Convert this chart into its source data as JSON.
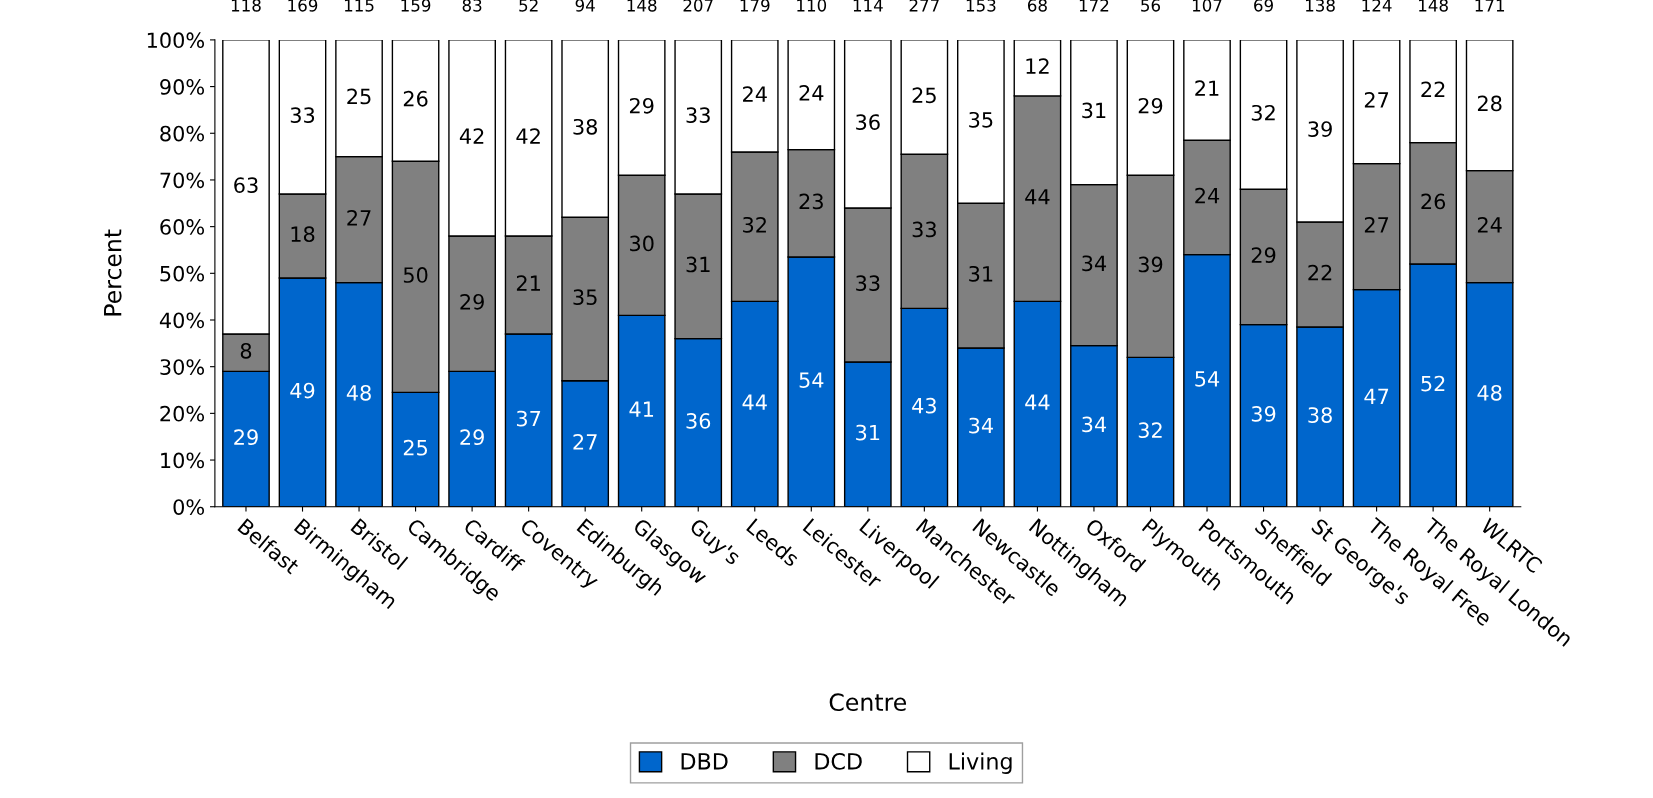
{
  "chart_data": {
    "type": "bar",
    "stacked": true,
    "xlabel": "Centre",
    "ylabel": "Percent",
    "categories": [
      "Belfast",
      "Birmingham",
      "Bristol",
      "Cambridge",
      "Cardiff",
      "Coventry",
      "Edinburgh",
      "Glasgow",
      "Guy's",
      "Leeds",
      "Leicester",
      "Liverpool",
      "Manchester",
      "Newcastle",
      "Nottingham",
      "Oxford",
      "Plymouth",
      "Portsmouth",
      "Sheffield",
      "St George's",
      "The Royal Free",
      "The Royal London",
      "WLRTC"
    ],
    "series": [
      {
        "name": "DBD",
        "color": "#0066cc",
        "values": [
          29,
          49,
          48,
          24.5,
          29,
          37,
          27,
          41,
          36,
          44,
          53.5,
          31,
          42.5,
          34,
          44,
          34.5,
          32,
          54,
          39,
          38.5,
          46.5,
          52,
          48
        ],
        "value_labels": [
          "29",
          "49",
          "48",
          "25",
          "29",
          "37",
          "27",
          "41",
          "36",
          "44",
          "54",
          "31",
          "43",
          "34",
          "44",
          "34",
          "32",
          "54",
          "39",
          "38",
          "47",
          "52",
          "48"
        ]
      },
      {
        "name": "DCD",
        "color": "#808080",
        "values": [
          8,
          18,
          27,
          49.5,
          29,
          21,
          35,
          30,
          31,
          32,
          23,
          33,
          33,
          31,
          44,
          34.5,
          39,
          24.5,
          29,
          22.5,
          27,
          26,
          24
        ],
        "value_labels": [
          "8",
          "18",
          "27",
          "50",
          "29",
          "21",
          "35",
          "30",
          "31",
          "32",
          "23",
          "33",
          "33",
          "31",
          "44",
          "34",
          "39",
          "24",
          "29",
          "22",
          "27",
          "26",
          "24"
        ]
      },
      {
        "name": "Living",
        "color": "#ffffff",
        "values": [
          63,
          33,
          25,
          26,
          42,
          42,
          38,
          29,
          33,
          24,
          23.5,
          36,
          24.5,
          35,
          12,
          31,
          29,
          21.5,
          32,
          39,
          26.5,
          22,
          28
        ],
        "value_labels": [
          "63",
          "33",
          "25",
          "26",
          "42",
          "42",
          "38",
          "29",
          "33",
          "24",
          "24",
          "36",
          "25",
          "35",
          "12",
          "31",
          "29",
          "21",
          "32",
          "39",
          "27",
          "22",
          "28"
        ]
      }
    ],
    "annotations": [
      {
        "text": "118",
        "x": "Belfast",
        "y": 100
      },
      {
        "text": "169",
        "x": "Birmingham",
        "y": 100
      },
      {
        "text": "115",
        "x": "Bristol",
        "y": 100
      },
      {
        "text": "159",
        "x": "Cambridge",
        "y": 100
      },
      {
        "text": "83",
        "x": "Cardiff",
        "y": 100
      },
      {
        "text": "52",
        "x": "Coventry",
        "y": 100
      },
      {
        "text": "94",
        "x": "Edinburgh",
        "y": 100
      },
      {
        "text": "148",
        "x": "Glasgow",
        "y": 100
      },
      {
        "text": "207",
        "x": "Guy's",
        "y": 100
      },
      {
        "text": "179",
        "x": "Leeds",
        "y": 100
      },
      {
        "text": "110",
        "x": "Leicester",
        "y": 100
      },
      {
        "text": "114",
        "x": "Liverpool",
        "y": 100
      },
      {
        "text": "277",
        "x": "Manchester",
        "y": 100
      },
      {
        "text": "153",
        "x": "Newcastle",
        "y": 100
      },
      {
        "text": "68",
        "x": "Nottingham",
        "y": 100
      },
      {
        "text": "172",
        "x": "Oxford",
        "y": 100
      },
      {
        "text": "56",
        "x": "Plymouth",
        "y": 100
      },
      {
        "text": "107",
        "x": "Portsmouth",
        "y": 100
      },
      {
        "text": "69",
        "x": "Sheffield",
        "y": 100
      },
      {
        "text": "138",
        "x": "St George's",
        "y": 100
      },
      {
        "text": "124",
        "x": "The Royal Free",
        "y": 100
      },
      {
        "text": "148",
        "x": "The Royal London",
        "y": 100
      },
      {
        "text": "171",
        "x": "WLRTC",
        "y": 100
      }
    ],
    "ylim": [
      0,
      100
    ],
    "yticks": [
      {
        "value": 0,
        "label": "0%"
      },
      {
        "value": 10,
        "label": "10%"
      },
      {
        "value": 20,
        "label": "20%"
      },
      {
        "value": 30,
        "label": "30%"
      },
      {
        "value": 40,
        "label": "40%"
      },
      {
        "value": 50,
        "label": "50%"
      },
      {
        "value": 60,
        "label": "60%"
      },
      {
        "value": 70,
        "label": "70%"
      },
      {
        "value": 80,
        "label": "80%"
      },
      {
        "value": 90,
        "label": "90%"
      },
      {
        "value": 100,
        "label": "100%"
      }
    ],
    "grid": false,
    "legend": "bottom"
  }
}
